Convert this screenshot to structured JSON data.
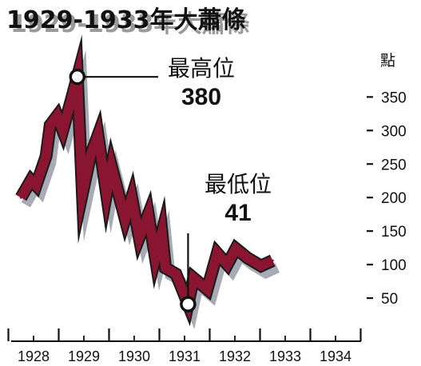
{
  "chart_data": {
    "type": "line",
    "title": "1929-1933年大蕭條",
    "ylabel": "點",
    "ylim": [
      0,
      400
    ],
    "yticks": [
      50,
      100,
      150,
      200,
      250,
      300,
      350
    ],
    "xticks": [
      "1928",
      "1929",
      "1930",
      "1931",
      "1932",
      "1933",
      "1934"
    ],
    "grid": false,
    "series": [
      {
        "values": [
          {
            "x": 1927.75,
            "y": 200
          },
          {
            "x": 1927.95,
            "y": 226
          },
          {
            "x": 1928.05,
            "y": 218
          },
          {
            "x": 1928.25,
            "y": 262
          },
          {
            "x": 1928.33,
            "y": 308
          },
          {
            "x": 1928.47,
            "y": 322
          },
          {
            "x": 1928.58,
            "y": 300
          },
          {
            "x": 1928.75,
            "y": 346
          },
          {
            "x": 1928.87,
            "y": 380
          },
          {
            "x": 1928.97,
            "y": 206
          },
          {
            "x": 1929.13,
            "y": 262
          },
          {
            "x": 1929.28,
            "y": 293
          },
          {
            "x": 1929.45,
            "y": 205
          },
          {
            "x": 1929.55,
            "y": 246
          },
          {
            "x": 1929.82,
            "y": 168
          },
          {
            "x": 1929.95,
            "y": 200
          },
          {
            "x": 1930.1,
            "y": 140
          },
          {
            "x": 1930.28,
            "y": 175
          },
          {
            "x": 1930.42,
            "y": 110
          },
          {
            "x": 1930.55,
            "y": 148
          },
          {
            "x": 1930.62,
            "y": 95
          },
          {
            "x": 1930.83,
            "y": 86
          },
          {
            "x": 1930.97,
            "y": 60
          },
          {
            "x": 1931.07,
            "y": 41
          },
          {
            "x": 1931.18,
            "y": 80
          },
          {
            "x": 1931.45,
            "y": 63
          },
          {
            "x": 1931.65,
            "y": 117
          },
          {
            "x": 1931.85,
            "y": 100
          },
          {
            "x": 1932.02,
            "y": 124
          },
          {
            "x": 1932.25,
            "y": 110
          },
          {
            "x": 1932.52,
            "y": 98
          },
          {
            "x": 1932.75,
            "y": 106
          }
        ]
      }
    ],
    "annotations": [
      {
        "label": "最高位",
        "value": "380",
        "x": 1928.87,
        "y": 380
      },
      {
        "label": "最低位",
        "value": "41",
        "x": 1931.07,
        "y": 41
      }
    ]
  }
}
